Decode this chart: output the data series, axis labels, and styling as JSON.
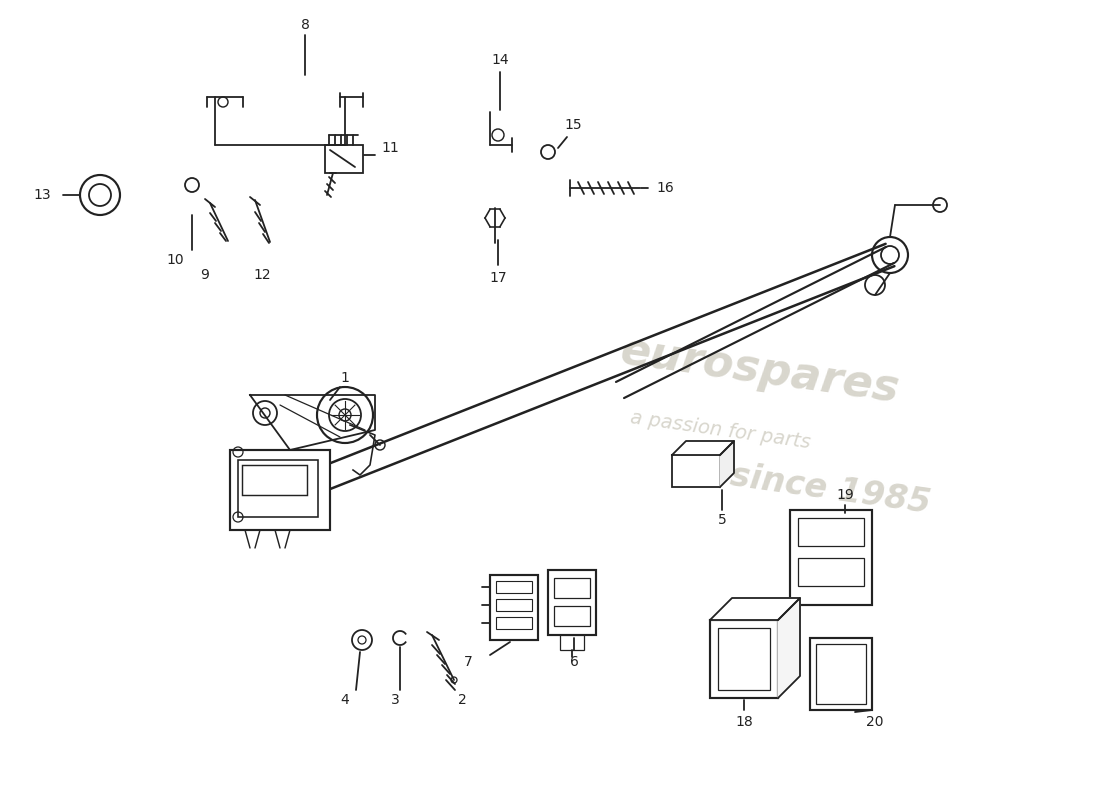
{
  "background_color": "#ffffff",
  "line_color": "#222222",
  "watermark_color": "#d0cfc8",
  "watermark_text1": "eurospares",
  "watermark_text2": "since 1985",
  "watermark_subtext": "a passion for parts",
  "figsize": [
    11.0,
    8.0
  ],
  "dpi": 100
}
